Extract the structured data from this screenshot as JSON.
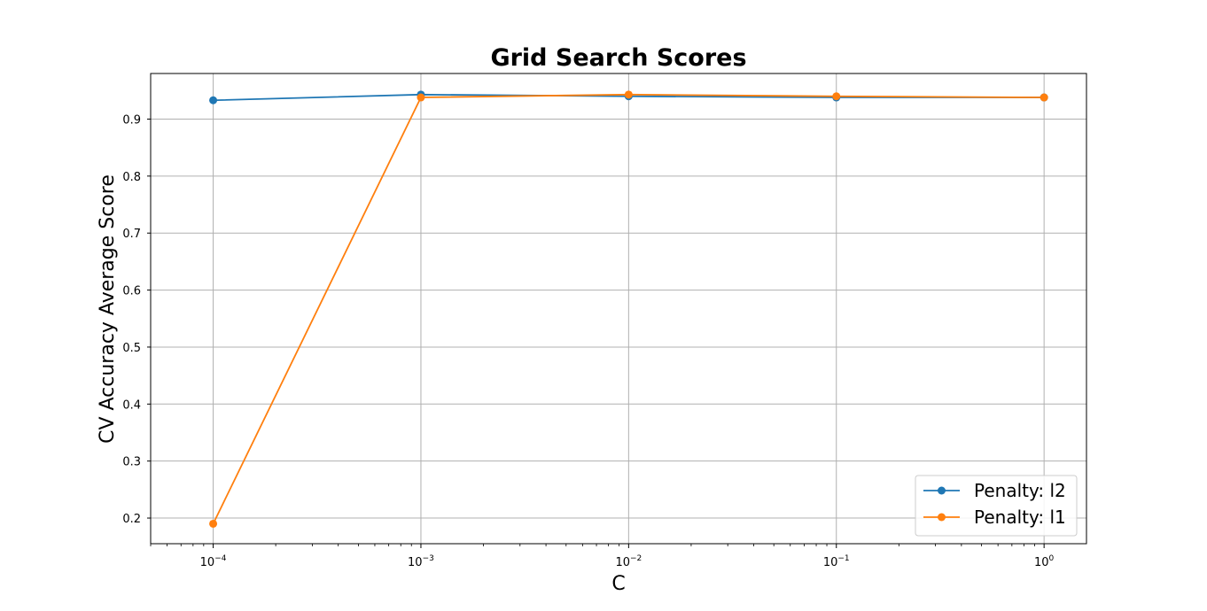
{
  "chart_data": {
    "type": "line",
    "title": "Grid Search Scores",
    "xlabel": "C",
    "ylabel": "CV Accuracy Average Score",
    "xscale": "log",
    "x": [
      0.0001,
      0.001,
      0.01,
      0.1,
      1
    ],
    "xticks": [
      {
        "value": 0.0001,
        "base": "10",
        "exp": "−4"
      },
      {
        "value": 0.001,
        "base": "10",
        "exp": "−3"
      },
      {
        "value": 0.01,
        "base": "10",
        "exp": "−2"
      },
      {
        "value": 0.1,
        "base": "10",
        "exp": "−1"
      },
      {
        "value": 1,
        "base": "10",
        "exp": "0"
      }
    ],
    "yticks": [
      "0.2",
      "0.3",
      "0.4",
      "0.5",
      "0.6",
      "0.7",
      "0.8",
      "0.9"
    ],
    "xlim": [
      5e-05,
      1.6
    ],
    "ylim": [
      0.155,
      0.98
    ],
    "grid": true,
    "legend_position": "bottom-right",
    "series": [
      {
        "name": "Penalty: l2",
        "color": "#1f77b4",
        "values": [
          0.933,
          0.943,
          0.94,
          0.938,
          0.938
        ]
      },
      {
        "name": "Penalty: l1",
        "color": "#ff7f0e",
        "values": [
          0.19,
          0.938,
          0.943,
          0.94,
          0.938
        ]
      }
    ]
  }
}
